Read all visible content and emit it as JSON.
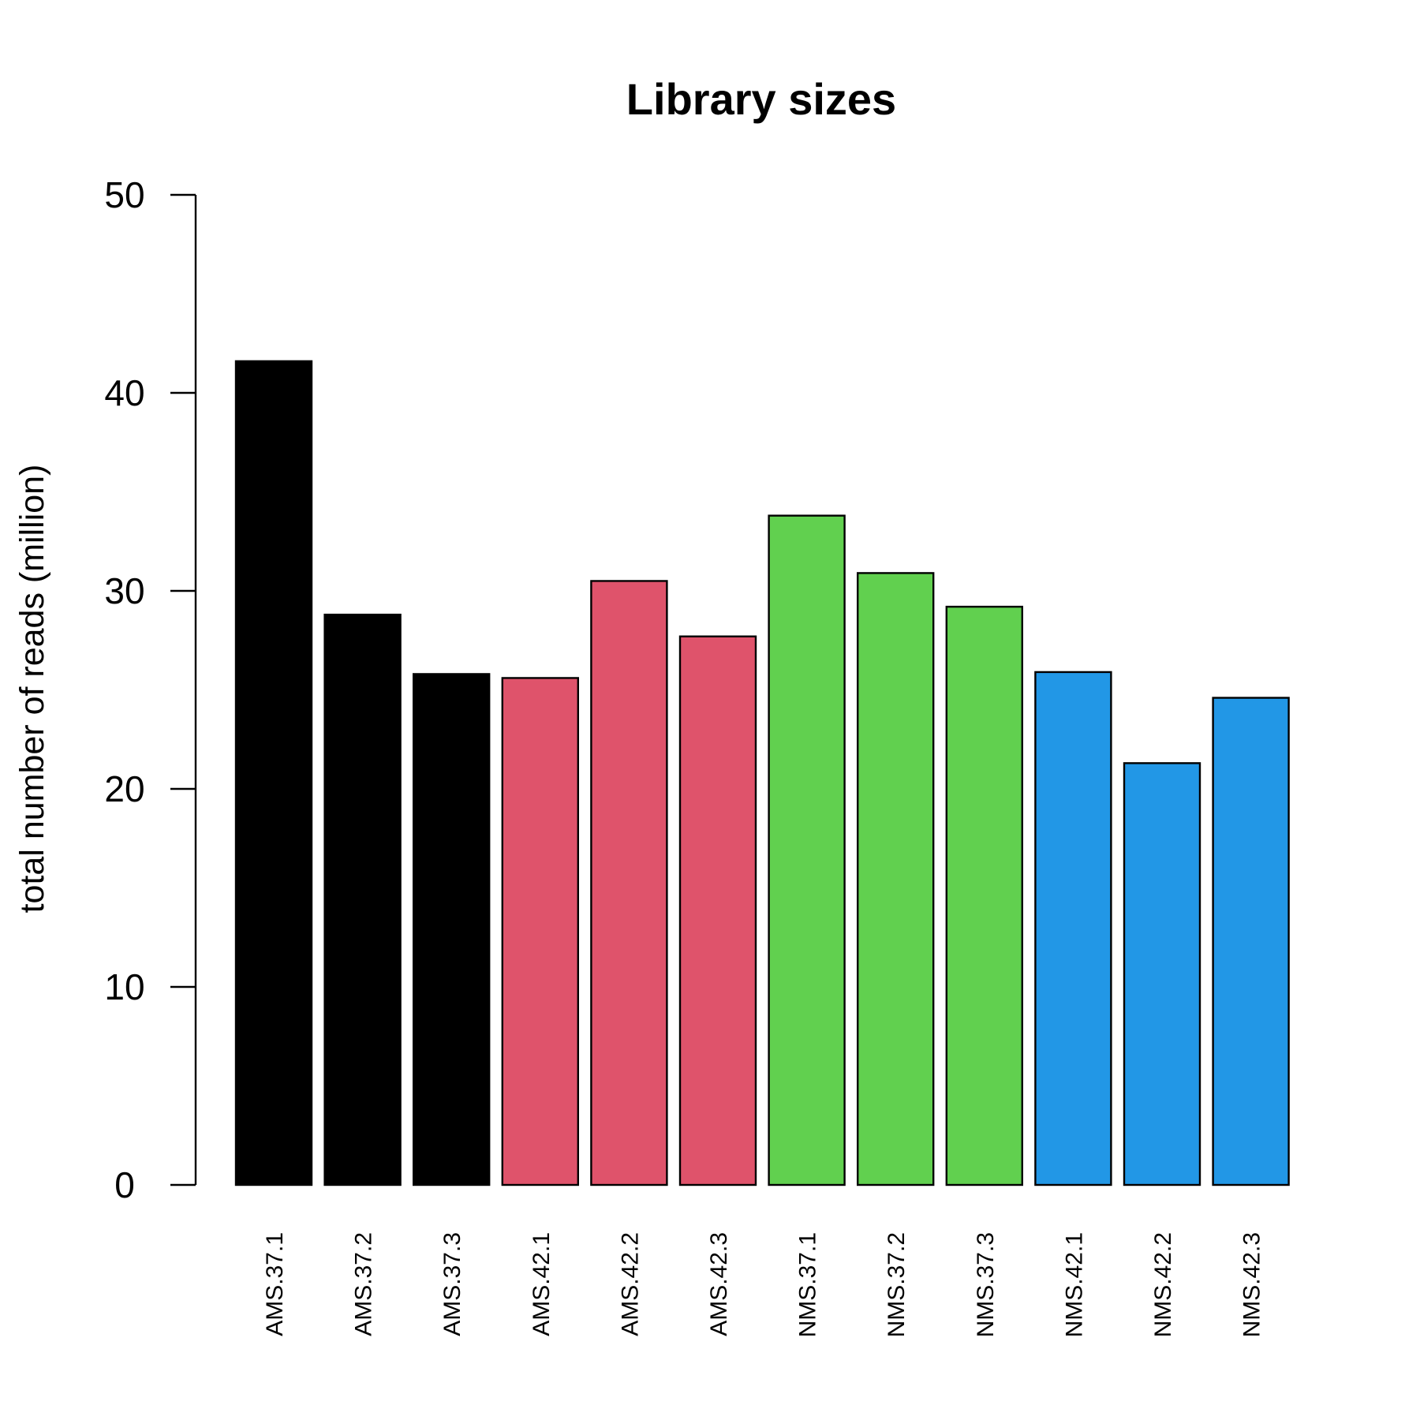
{
  "chart_data": {
    "type": "bar",
    "title": "Library sizes",
    "ylabel": "total number of reads (million)",
    "xlabel": "",
    "ylim": [
      0,
      50
    ],
    "yticks": [
      0,
      10,
      20,
      30,
      40,
      50
    ],
    "categories": [
      "AMS.37.1",
      "AMS.37.2",
      "AMS.37.3",
      "AMS.42.1",
      "AMS.42.2",
      "AMS.42.3",
      "NMS.37.1",
      "NMS.37.2",
      "NMS.37.3",
      "NMS.42.1",
      "NMS.42.2",
      "NMS.42.3"
    ],
    "values": [
      41.6,
      28.8,
      25.8,
      25.6,
      30.5,
      27.7,
      33.8,
      30.9,
      29.2,
      25.9,
      21.3,
      24.6
    ],
    "bar_colors": [
      "#000000",
      "#000000",
      "#000000",
      "#DF536B",
      "#DF536B",
      "#DF536B",
      "#61D04F",
      "#61D04F",
      "#61D04F",
      "#2297E6",
      "#2297E6",
      "#2297E6"
    ],
    "grid": false,
    "legend": "none"
  }
}
